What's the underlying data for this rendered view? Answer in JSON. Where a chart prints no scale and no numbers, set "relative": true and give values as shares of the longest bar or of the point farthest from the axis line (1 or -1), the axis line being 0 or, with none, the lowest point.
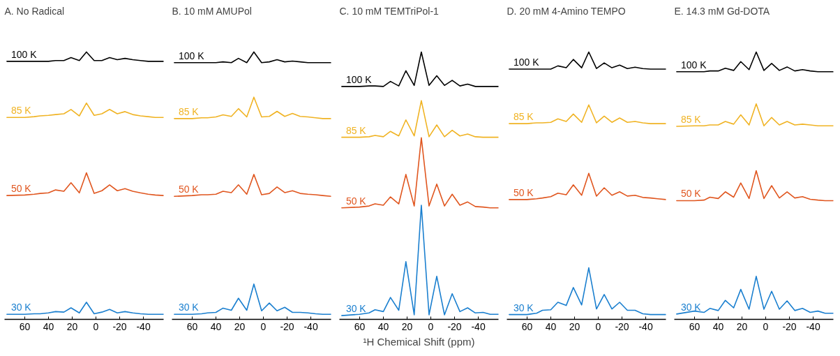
{
  "chart_data": [
    {
      "type": "line",
      "title": "A. No Radical",
      "relative": true,
      "tick_labels": "x",
      "xlim": [
        77,
        -57
      ],
      "xticks": [
        60,
        40,
        20,
        0,
        -20,
        -40
      ],
      "x": [
        75,
        60,
        52,
        47,
        40,
        34,
        27,
        21,
        14,
        8,
        1.5,
        -5,
        -11.5,
        -18,
        -24.5,
        -31,
        -37.5,
        -44,
        -50,
        -57
      ],
      "series": [
        {
          "name": "100 K",
          "color": "#000000",
          "values": [
            0.965,
            0.965,
            0.965,
            0.965,
            0.965,
            0.968,
            0.968,
            0.979,
            0.968,
            1,
            0.968,
            0.968,
            0.979,
            0.971,
            0.976,
            0.971,
            0.968,
            0.965,
            0.965,
            0.965
          ]
        },
        {
          "name": "85 K",
          "color": "#f0b323",
          "values": [
            0.755,
            0.755,
            0.758,
            0.761,
            0.763,
            0.766,
            0.769,
            0.785,
            0.761,
            0.809,
            0.763,
            0.769,
            0.785,
            0.769,
            0.777,
            0.766,
            0.761,
            0.758,
            0.755,
            0.755
          ]
        },
        {
          "name": "50 K",
          "color": "#e0561f",
          "values": [
            0.463,
            0.465,
            0.468,
            0.471,
            0.473,
            0.484,
            0.479,
            0.511,
            0.473,
            0.548,
            0.471,
            0.481,
            0.503,
            0.481,
            0.489,
            0.479,
            0.473,
            0.468,
            0.465,
            0.463
          ]
        },
        {
          "name": "30 K",
          "color": "#1a7fcf",
          "values": [
            0.019,
            0.019,
            0.021,
            0.021,
            0.024,
            0.029,
            0.027,
            0.043,
            0.024,
            0.064,
            0.021,
            0.027,
            0.037,
            0.024,
            0.029,
            0.024,
            0.021,
            0.019,
            0.019,
            0.019
          ]
        }
      ]
    },
    {
      "type": "line",
      "title": "B. 10 mM AMUPol",
      "relative": true,
      "tick_labels": "x",
      "xlim": [
        77,
        -57
      ],
      "xticks": [
        60,
        40,
        20,
        0,
        -20,
        -40
      ],
      "x": [
        75,
        60,
        52,
        47,
        40,
        34,
        27,
        21,
        14,
        8,
        1.5,
        -5,
        -11.5,
        -18,
        -24.5,
        -31,
        -37.5,
        -44,
        -50,
        -57
      ],
      "series": [
        {
          "name": "100 K",
          "color": "#000000",
          "values": [
            0.96,
            0.96,
            0.96,
            0.96,
            0.96,
            0.963,
            0.96,
            0.976,
            0.96,
            1,
            0.96,
            0.963,
            0.971,
            0.963,
            0.966,
            0.963,
            0.96,
            0.96,
            0.96,
            0.96
          ]
        },
        {
          "name": "85 K",
          "color": "#f0b323",
          "values": [
            0.751,
            0.751,
            0.754,
            0.754,
            0.757,
            0.765,
            0.759,
            0.788,
            0.757,
            0.831,
            0.757,
            0.759,
            0.778,
            0.759,
            0.77,
            0.759,
            0.757,
            0.754,
            0.751,
            0.751
          ]
        },
        {
          "name": "50 K",
          "color": "#e0561f",
          "values": [
            0.46,
            0.463,
            0.466,
            0.466,
            0.468,
            0.479,
            0.474,
            0.503,
            0.468,
            0.542,
            0.466,
            0.471,
            0.495,
            0.474,
            0.481,
            0.471,
            0.468,
            0.466,
            0.463,
            0.46
          ]
        },
        {
          "name": "30 K",
          "color": "#1a7fcf",
          "values": [
            0.019,
            0.019,
            0.021,
            0.024,
            0.026,
            0.042,
            0.034,
            0.079,
            0.034,
            0.132,
            0.032,
            0.061,
            0.032,
            0.045,
            0.026,
            0.026,
            0.024,
            0.021,
            0.019,
            0.019
          ]
        }
      ]
    },
    {
      "type": "line",
      "title": "C. 10 mM TEMTriPol-1",
      "xlabel": "¹H Chemical Shift (ppm)",
      "relative": true,
      "tick_labels": "x",
      "xlim": [
        77,
        -57
      ],
      "xticks": [
        60,
        40,
        20,
        0,
        -20,
        -40
      ],
      "x": [
        75,
        60,
        52,
        47,
        40,
        34,
        27,
        21,
        14,
        8,
        1.5,
        -5,
        -11.5,
        -18,
        -24.5,
        -31,
        -37.5,
        -44,
        -50,
        -57
      ],
      "series": [
        {
          "name": "100 K",
          "color": "#000000",
          "values": [
            0.871,
            0.871,
            0.873,
            0.873,
            0.871,
            0.89,
            0.873,
            0.93,
            0.875,
            1,
            0.875,
            0.911,
            0.875,
            0.894,
            0.873,
            0.88,
            0.871,
            0.871,
            0.871,
            0.871
          ]
        },
        {
          "name": "85 K",
          "color": "#f0b323",
          "values": [
            0.681,
            0.681,
            0.683,
            0.688,
            0.683,
            0.703,
            0.686,
            0.746,
            0.686,
            0.818,
            0.683,
            0.727,
            0.683,
            0.707,
            0.686,
            0.693,
            0.683,
            0.681,
            0.681,
            0.681
          ]
        },
        {
          "name": "50 K",
          "color": "#e0561f",
          "values": [
            0.417,
            0.42,
            0.424,
            0.432,
            0.427,
            0.458,
            0.432,
            0.542,
            0.424,
            0.679,
            0.424,
            0.506,
            0.424,
            0.468,
            0.427,
            0.439,
            0.422,
            0.42,
            0.417,
            0.417
          ]
        },
        {
          "name": "30 K",
          "color": "#1a7fcf",
          "values": [
            0.014,
            0.019,
            0.024,
            0.036,
            0.029,
            0.082,
            0.034,
            0.216,
            0.017,
            0.427,
            0.017,
            0.161,
            0.017,
            0.096,
            0.029,
            0.043,
            0.024,
            0.026,
            0.019,
            0.019
          ]
        }
      ]
    },
    {
      "type": "line",
      "title": "D. 20 mM 4-Amino TEMPO",
      "relative": true,
      "tick_labels": "x",
      "xlim": [
        77,
        -57
      ],
      "xticks": [
        60,
        40,
        20,
        0,
        -20,
        -40
      ],
      "x": [
        75,
        60,
        52,
        47,
        40,
        34,
        27,
        21,
        14,
        8,
        1.5,
        -5,
        -11.5,
        -18,
        -24.5,
        -31,
        -37.5,
        -44,
        -50,
        -57
      ],
      "series": [
        {
          "name": "100 K",
          "color": "#000000",
          "values": [
            0.936,
            0.936,
            0.936,
            0.936,
            0.936,
            0.948,
            0.941,
            0.972,
            0.941,
            1,
            0.938,
            0.959,
            0.941,
            0.951,
            0.938,
            0.943,
            0.938,
            0.936,
            0.936,
            0.936
          ]
        },
        {
          "name": "85 K",
          "color": "#f0b323",
          "values": [
            0.732,
            0.732,
            0.735,
            0.735,
            0.737,
            0.75,
            0.74,
            0.768,
            0.737,
            0.802,
            0.735,
            0.76,
            0.737,
            0.753,
            0.737,
            0.74,
            0.735,
            0.732,
            0.732,
            0.732
          ]
        },
        {
          "name": "50 K",
          "color": "#e0561f",
          "values": [
            0.448,
            0.448,
            0.451,
            0.454,
            0.459,
            0.472,
            0.466,
            0.503,
            0.464,
            0.546,
            0.461,
            0.492,
            0.464,
            0.477,
            0.461,
            0.464,
            0.456,
            0.454,
            0.451,
            0.448
          ]
        },
        {
          "name": "30 K",
          "color": "#1a7fcf",
          "values": [
            0.018,
            0.018,
            0.023,
            0.034,
            0.036,
            0.064,
            0.052,
            0.119,
            0.054,
            0.193,
            0.039,
            0.093,
            0.039,
            0.064,
            0.034,
            0.034,
            0.021,
            0.018,
            0.018,
            0.018
          ]
        }
      ]
    },
    {
      "type": "line",
      "title": "E. 14.3 mM Gd-DOTA",
      "relative": true,
      "tick_labels": "x",
      "xlim": [
        77,
        -57
      ],
      "xticks": [
        60,
        40,
        20,
        0,
        -20,
        -40
      ],
      "x": [
        75,
        60,
        52,
        47,
        40,
        34,
        27,
        21,
        14,
        8,
        1.5,
        -5,
        -11.5,
        -18,
        -24.5,
        -31,
        -37.5,
        -44,
        -50,
        -57
      ],
      "series": [
        {
          "name": "100 K",
          "color": "#000000",
          "values": [
            0.926,
            0.926,
            0.926,
            0.929,
            0.929,
            0.939,
            0.931,
            0.964,
            0.934,
            1,
            0.931,
            0.957,
            0.931,
            0.944,
            0.929,
            0.934,
            0.929,
            0.926,
            0.926,
            0.926
          ]
        },
        {
          "name": "85 K",
          "color": "#f0b323",
          "values": [
            0.722,
            0.724,
            0.724,
            0.727,
            0.727,
            0.74,
            0.73,
            0.765,
            0.727,
            0.806,
            0.724,
            0.755,
            0.727,
            0.74,
            0.727,
            0.73,
            0.727,
            0.724,
            0.724,
            0.724
          ]
        },
        {
          "name": "50 K",
          "color": "#e0561f",
          "values": [
            0.444,
            0.444,
            0.446,
            0.457,
            0.452,
            0.477,
            0.457,
            0.51,
            0.452,
            0.556,
            0.452,
            0.5,
            0.454,
            0.477,
            0.454,
            0.459,
            0.449,
            0.446,
            0.444,
            0.444
          ]
        },
        {
          "name": "30 K",
          "color": "#1a7fcf",
          "values": [
            0.02,
            0.031,
            0.026,
            0.041,
            0.033,
            0.071,
            0.043,
            0.112,
            0.038,
            0.161,
            0.038,
            0.105,
            0.038,
            0.069,
            0.033,
            0.041,
            0.026,
            0.031,
            0.023,
            0.023
          ]
        }
      ]
    }
  ]
}
